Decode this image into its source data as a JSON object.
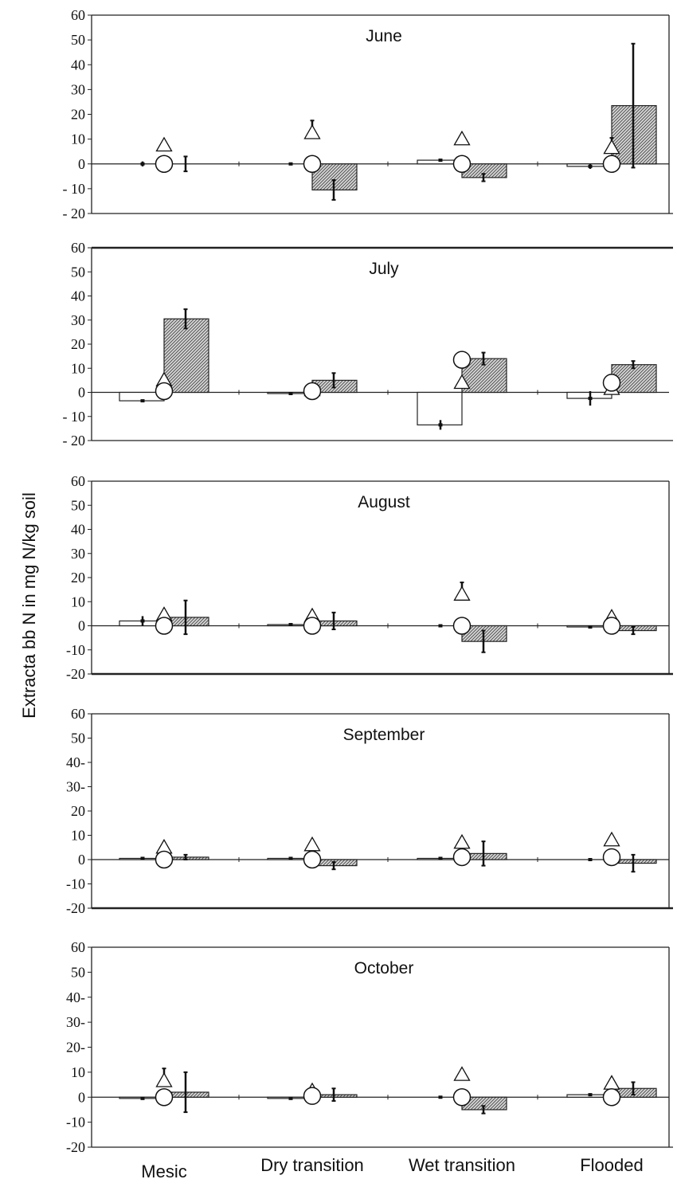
{
  "figure": {
    "ylabel": "Extracta bb N in mg N/kg soil"
  },
  "chart_data": [
    {
      "type": "bar",
      "title": "June",
      "categories": [
        "Mesic",
        "Dry transition",
        "Wet transition",
        "Flooded"
      ],
      "ylim": [
        -20,
        60
      ],
      "yticks": [
        "60",
        "50",
        "40",
        "30",
        "20",
        "10",
        "0",
        "- 10",
        "- 20"
      ],
      "series": [
        {
          "values": [
            0,
            0,
            1.5,
            -1
          ],
          "err": [
            1,
            0,
            0.5,
            1
          ]
        },
        {
          "values": [
            0,
            -10.5,
            -5.5,
            23.5
          ],
          "err": [
            3,
            4,
            1.5,
            25
          ]
        },
        {
          "values": [
            7.5,
            12.5,
            10,
            6.5
          ],
          "err": [
            0,
            5,
            0,
            4
          ]
        },
        {
          "values": [
            0,
            0,
            0,
            0
          ],
          "err": [
            0,
            0,
            0,
            0
          ]
        }
      ]
    },
    {
      "type": "bar",
      "title": "July",
      "categories": [
        "Mesic",
        "Dry transition",
        "Wet transition",
        "Flooded"
      ],
      "ylim": [
        -20,
        60
      ],
      "yticks": [
        "60",
        "50",
        "40",
        "30",
        "20",
        "10",
        "0",
        "- 10",
        "- 20"
      ],
      "series": [
        {
          "values": [
            -3.5,
            -0.5,
            -13.5,
            -2.5
          ],
          "err": [
            0.5,
            0.5,
            2,
            3
          ]
        },
        {
          "values": [
            30.5,
            5,
            14,
            11.5
          ],
          "err": [
            4,
            3,
            2.5,
            1.5
          ]
        },
        {
          "values": [
            5,
            1,
            4,
            1.5
          ],
          "err": [
            0,
            0,
            0,
            0
          ]
        },
        {
          "values": [
            0.5,
            0.5,
            13.5,
            4
          ],
          "err": [
            0,
            0,
            0,
            0
          ]
        }
      ]
    },
    {
      "type": "bar",
      "title": "August",
      "categories": [
        "Mesic",
        "Dry transition",
        "Wet transition",
        "Flooded"
      ],
      "ylim": [
        -20,
        60
      ],
      "yticks": [
        "60",
        "50",
        "40",
        "30",
        "20",
        "10",
        "0",
        "-10",
        "-20"
      ],
      "series": [
        {
          "values": [
            2,
            0.5,
            0,
            -0.5
          ],
          "err": [
            2,
            0,
            0,
            0
          ]
        },
        {
          "values": [
            3.5,
            2,
            -6.5,
            -2
          ],
          "err": [
            7,
            3.5,
            4.5,
            1.5
          ]
        },
        {
          "values": [
            4.5,
            4,
            13,
            3.5
          ],
          "err": [
            0,
            0,
            5,
            0
          ]
        },
        {
          "values": [
            0,
            0,
            0,
            0
          ],
          "err": [
            0,
            0,
            0,
            0
          ]
        }
      ]
    },
    {
      "type": "bar",
      "title": "September",
      "categories": [
        "Mesic",
        "Dry transition",
        "Wet transition",
        "Flooded"
      ],
      "ylim": [
        -20,
        60
      ],
      "yticks": [
        "60",
        "50",
        "40-",
        "30-",
        "20",
        "10",
        "0",
        "-10",
        "-20"
      ],
      "series": [
        {
          "values": [
            0.5,
            0.5,
            0.5,
            0
          ],
          "err": [
            0,
            0,
            0,
            0
          ]
        },
        {
          "values": [
            1,
            -2.5,
            2.5,
            -1.5
          ],
          "err": [
            1,
            1.5,
            5,
            3.5
          ]
        },
        {
          "values": [
            5,
            6,
            7,
            8
          ],
          "err": [
            0,
            0,
            0,
            0
          ]
        },
        {
          "values": [
            0,
            0,
            1,
            1
          ],
          "err": [
            0,
            0,
            0,
            0
          ]
        }
      ]
    },
    {
      "type": "bar",
      "title": "October",
      "categories": [
        "Mesic",
        "Dry transition",
        "Wet transition",
        "Flooded"
      ],
      "ylim": [
        -20,
        60
      ],
      "yticks": [
        "60",
        "50",
        "40-",
        "30-",
        "20-",
        "10",
        "0",
        "-10",
        "-20"
      ],
      "series": [
        {
          "values": [
            -0.5,
            -0.5,
            0,
            1
          ],
          "err": [
            0,
            0,
            0,
            0
          ]
        },
        {
          "values": [
            2,
            1,
            -5,
            3.5
          ],
          "err": [
            8,
            2.5,
            1.5,
            2.5
          ]
        },
        {
          "values": [
            6.5,
            2.5,
            9,
            5.5
          ],
          "err": [
            5,
            0,
            0,
            0
          ]
        },
        {
          "values": [
            0,
            0.5,
            0,
            0
          ],
          "err": [
            0,
            0,
            0,
            0
          ]
        }
      ]
    }
  ]
}
